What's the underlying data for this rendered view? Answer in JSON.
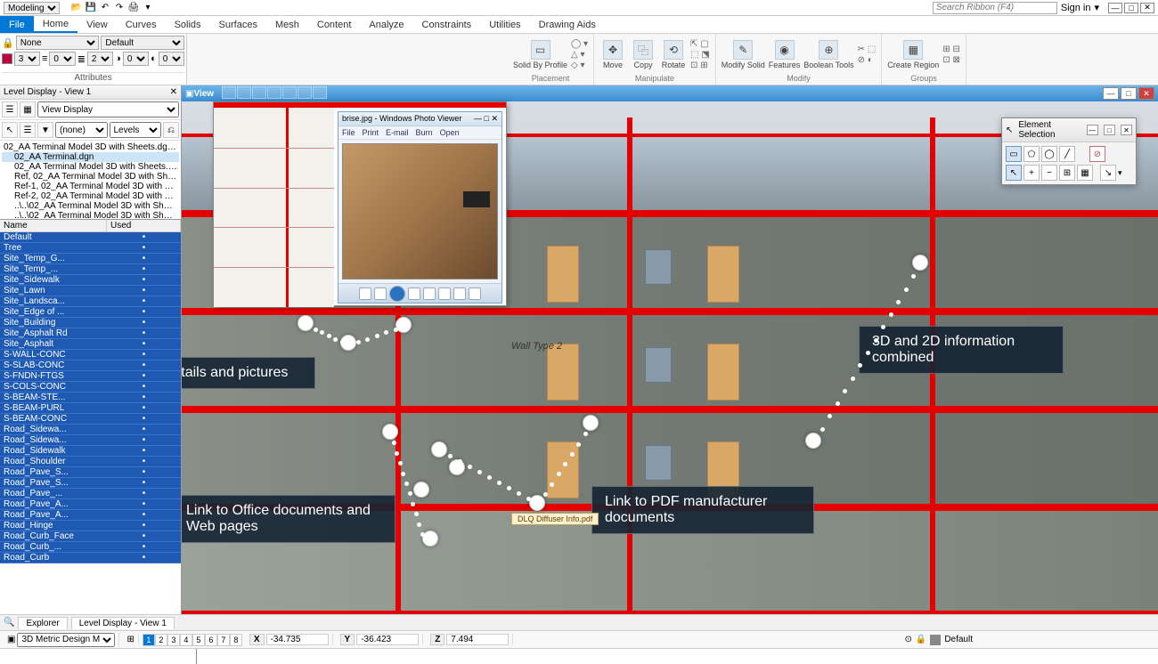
{
  "titlebar": {
    "workflow": "Modeling",
    "search_placeholder": "Search Ribbon (F4)",
    "signin": "Sign in"
  },
  "menubar": {
    "tabs": [
      "File",
      "Home",
      "View",
      "Curves",
      "Solids",
      "Surfaces",
      "Mesh",
      "Content",
      "Analyze",
      "Constraints",
      "Utilities",
      "Drawing Aids"
    ],
    "active": "Home"
  },
  "attributes": {
    "title": "Attributes",
    "level": "None",
    "style": "Default",
    "color_idx": "3",
    "weight": "0",
    "linestyle_idx": "2",
    "priority": "0",
    "transparency": "0"
  },
  "ribbon_groups": [
    {
      "label": "Placement",
      "buttons": [
        "Solid By Profile"
      ]
    },
    {
      "label": "Manipulate",
      "buttons": [
        "Move",
        "Copy",
        "Rotate"
      ]
    },
    {
      "label": "Modify",
      "buttons": [
        "Modify Solid",
        "Features",
        "Boolean Tools"
      ]
    },
    {
      "label": "Groups",
      "buttons": [
        "Create Region"
      ]
    }
  ],
  "level_display": {
    "title": "Level Display - View 1",
    "view_display": "View Display",
    "filter": "(none)",
    "levels_dd": "Levels",
    "tree": [
      "02_AA Terminal Model 3D with Sheets.dgn, 3D...",
      "  02_AA Terminal.dgn",
      "  02_AA Terminal Model 3D with Sheets.dgn,...",
      "  Ref, 02_AA Terminal Model 3D with Sheets...",
      "  Ref-1, 02_AA Terminal Model 3D with Shee...",
      "  Ref-2, 02_AA Terminal Model 3D with Shee...",
      "  ..\\..\\02_AA Terminal Model 3D with Sheets...",
      "  ..\\..\\02_AA Terminal Model 3D with Sheets..."
    ],
    "columns": [
      "Name",
      "Used"
    ],
    "levels": [
      "Default",
      "Tree",
      "Site_Temp_G...",
      "Site_Temp_...",
      "Site_Sidewalk",
      "Site_Lawn",
      "Site_Landsca...",
      "Site_Edge of ...",
      "Site_Building",
      "Site_Asphalt Rd",
      "Site_Asphalt",
      "S-WALL-CONC",
      "S-SLAB-CONC",
      "S-FNDN-FTGS",
      "S-COLS-CONC",
      "S-BEAM-STE...",
      "S-BEAM-PURL",
      "S-BEAM-CONC",
      "Road_Sidewa...",
      "Road_Sidewa...",
      "Road_Sidewalk",
      "Road_Shoulder",
      "Road_Pave_S...",
      "Road_Pave_S...",
      "Road_Pave_...",
      "Road_Pave_A...",
      "Road_Pave_A...",
      "Road_Hinge",
      "Road_Curb_Face",
      "Road_Curb_...",
      "Road_Curb"
    ]
  },
  "bottom_tabs": [
    "Explorer",
    "Level Display - View 1"
  ],
  "statusbar": {
    "model": "3D Metric Design M",
    "active_view": 1,
    "views": [
      1,
      2,
      3,
      4,
      5,
      6,
      7,
      8
    ],
    "x": "-34.735",
    "y": "-36.423",
    "z": "7.494",
    "default": "Default"
  },
  "view": {
    "title": "View"
  },
  "element_selection": {
    "title": "Element Selection"
  },
  "photo_viewer": {
    "title": "brise.jpg - Windows Photo Viewer",
    "menu": [
      "File",
      "Print",
      "E-mail",
      "Burn",
      "Open"
    ]
  },
  "callouts": {
    "c1": "Link to 2D details and pictures",
    "c2": "Link to Office documents and Web pages",
    "c3": "Link to PDF manufacturer documents",
    "c4": "3D and 2D information combined"
  },
  "pdf_label": "DLQ Diffuser Info.pdf",
  "wall_label": "Wall Type 2",
  "colors": {
    "accent": "#0078d7",
    "red": "#e40000",
    "level_bg": "#1e5ab3"
  }
}
